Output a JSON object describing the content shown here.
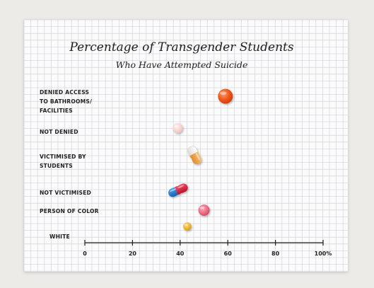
{
  "chart_data": {
    "type": "scatter",
    "title": "Percentage of Transgender Students",
    "subtitle": "Who Have Attempted Suicide",
    "xlabel": "",
    "ylabel": "",
    "xlim": [
      0,
      100
    ],
    "grid": true,
    "x_ticks": [
      "0",
      "20",
      "40",
      "60",
      "80",
      "100%"
    ],
    "categories": [
      [
        "DENIED ACCESS",
        "TO BATHROOMS/",
        "FACILITIES"
      ],
      [
        "NOT DENIED"
      ],
      [
        "VICTIMISED BY",
        "STUDENTS"
      ],
      [
        "NOT VICTIMISED"
      ],
      [
        "PERSON OF COLOR"
      ],
      [
        "WHITE"
      ]
    ],
    "values": [
      59,
      39,
      46,
      39,
      50,
      43
    ],
    "marker_icons": [
      "round-orange-pill-icon",
      "pale-pink-pill-icon",
      "white-orange-capsule-icon",
      "red-blue-capsule-icon",
      "pink-pill-icon",
      "small-yellow-pill-icon"
    ],
    "marker_colors": [
      "#f0561d",
      "#f1c7c2",
      "#f0a24a",
      "#d9203a",
      "#ec6c86",
      "#eeb51d"
    ]
  }
}
